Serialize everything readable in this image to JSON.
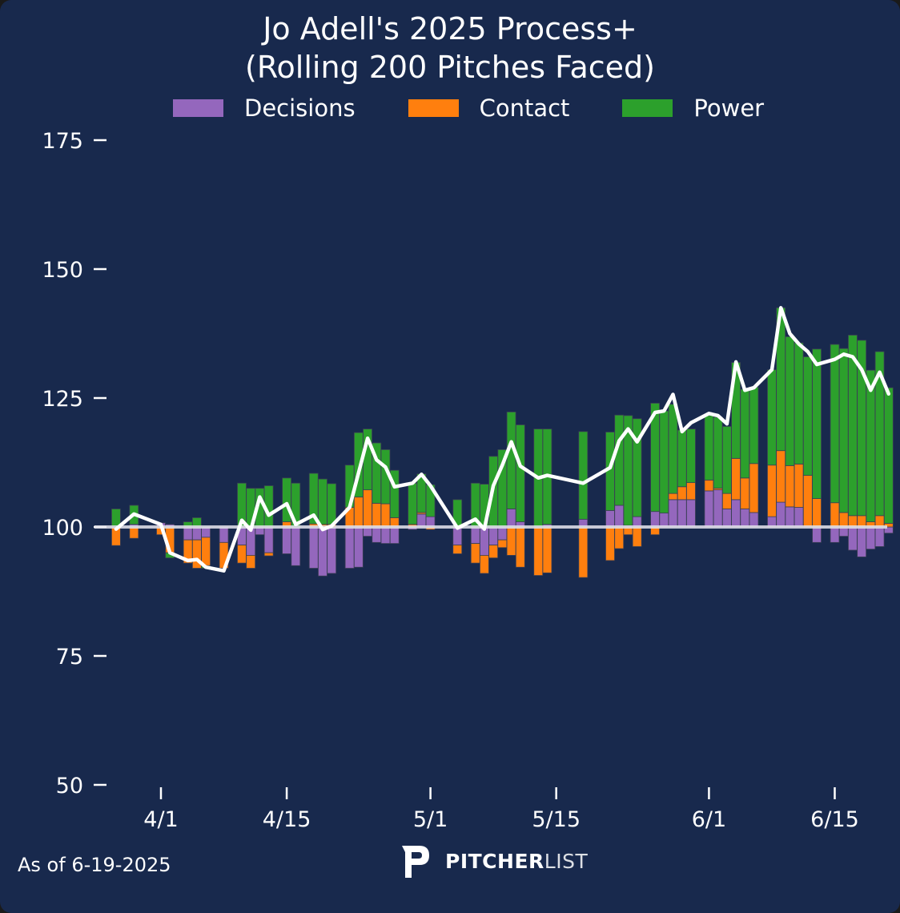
{
  "chart_data": {
    "type": "bar",
    "title_line1": "Jo Adell's 2025 Process+",
    "title_line2": "(Rolling 200 Pitches Faced)",
    "xlabel": "",
    "ylabel": "",
    "ylim": [
      50,
      180
    ],
    "baseline": 100,
    "yticks": [
      175,
      150,
      125,
      100,
      75,
      50
    ],
    "xticks": [
      {
        "label": "4/1",
        "day": 5
      },
      {
        "label": "4/15",
        "day": 19
      },
      {
        "label": "5/1",
        "day": 35
      },
      {
        "label": "5/15",
        "day": 49
      },
      {
        "label": "6/1",
        "day": 66
      },
      {
        "label": "6/15",
        "day": 80
      }
    ],
    "legend": {
      "position": "top-center",
      "entries": [
        {
          "name": "Decisions",
          "color": "#9467bd"
        },
        {
          "name": "Contact",
          "color": "#ff7f0e"
        },
        {
          "name": "Power",
          "color": "#2ca02c"
        }
      ]
    },
    "line": {
      "name": "Process+",
      "color": "#ffffff"
    },
    "series_note": "Each game: decisions/contact/power are deltas from 100; line is total Process+.",
    "games": [
      {
        "day": 0,
        "decisions": 0,
        "contact": -3.6,
        "power": 3.5,
        "total": 99.6
      },
      {
        "day": 2,
        "decisions": 0.5,
        "contact": -2.2,
        "power": 3.7,
        "total": 102.5
      },
      {
        "day": 5,
        "decisions": 0.8,
        "contact": -1.5,
        "power": 0,
        "total": 100.5
      },
      {
        "day": 6,
        "decisions": 0.5,
        "contact": -5.0,
        "power": -1.0,
        "total": 95
      },
      {
        "day": 8,
        "decisions": -2.5,
        "contact": -4.5,
        "power": 1.0,
        "total": 93.5
      },
      {
        "day": 9,
        "decisions": -2.5,
        "contact": -5.5,
        "power": 1.8,
        "total": 93.7
      },
      {
        "day": 10,
        "decisions": -2.0,
        "contact": -5.5,
        "power": -0.5,
        "total": 92.2
      },
      {
        "day": 12,
        "decisions": -3.0,
        "contact": -5.0,
        "power": 0,
        "total": 91.5
      },
      {
        "day": 14,
        "decisions": -3.5,
        "contact": -3.5,
        "power": 8.5,
        "total": 101.3
      },
      {
        "day": 15,
        "decisions": -5.5,
        "contact": -2.5,
        "power": 7.5,
        "total": 99.4
      },
      {
        "day": 16,
        "decisions": -1.5,
        "contact": 0,
        "power": 7.5,
        "total": 105.8
      },
      {
        "day": 17,
        "decisions": -5.0,
        "contact": -0.6,
        "power": 8.0,
        "total": 102.3
      },
      {
        "day": 19,
        "decisions": -5.2,
        "contact": 1.0,
        "power": 8.5,
        "total": 104.5
      },
      {
        "day": 20,
        "decisions": -7.5,
        "contact": 0,
        "power": 8.5,
        "total": 100.5
      },
      {
        "day": 22,
        "decisions": -8.0,
        "contact": 0.6,
        "power": 9.8,
        "total": 102.3
      },
      {
        "day": 23,
        "decisions": -9.5,
        "contact": 0.5,
        "power": 8.8,
        "total": 99.5
      },
      {
        "day": 24,
        "decisions": -9.0,
        "contact": 0.5,
        "power": 7.9,
        "total": 100.2
      },
      {
        "day": 26,
        "decisions": -8.0,
        "contact": 3.8,
        "power": 8.2,
        "total": 103.8
      },
      {
        "day": 27,
        "decisions": -7.8,
        "contact": 5.8,
        "power": 12.5,
        "total": 110.5
      },
      {
        "day": 28,
        "decisions": -1.8,
        "contact": 7.2,
        "power": 11.8,
        "total": 117.2
      },
      {
        "day": 29,
        "decisions": -3.0,
        "contact": 4.6,
        "power": 11.7,
        "total": 113.0
      },
      {
        "day": 30,
        "decisions": -3.2,
        "contact": 4.5,
        "power": 10.5,
        "total": 111.6
      },
      {
        "day": 31,
        "decisions": -3.2,
        "contact": 1.8,
        "power": 9.2,
        "total": 107.8
      },
      {
        "day": 33,
        "decisions": -0.5,
        "contact": 0.5,
        "power": 8.0,
        "total": 108.5
      },
      {
        "day": 34,
        "decisions": 2.5,
        "contact": 0.3,
        "power": 7.5,
        "total": 110.2
      },
      {
        "day": 35,
        "decisions": 2.0,
        "contact": -0.5,
        "power": 6.2,
        "total": 108.0
      },
      {
        "day": 38,
        "decisions": -3.5,
        "contact": -1.7,
        "power": 5.3,
        "total": 99.8
      },
      {
        "day": 40,
        "decisions": -3.2,
        "contact": -3.8,
        "power": 8.5,
        "total": 101.5
      },
      {
        "day": 41,
        "decisions": -5.5,
        "contact": -3.5,
        "power": 8.3,
        "total": 99.6
      },
      {
        "day": 42,
        "decisions": -3.5,
        "contact": -2.5,
        "power": 13.7,
        "total": 108.0
      },
      {
        "day": 43,
        "decisions": -2.5,
        "contact": -1.5,
        "power": 15.0,
        "total": 112.0
      },
      {
        "day": 44,
        "decisions": 3.5,
        "contact": -5.5,
        "power": 18.8,
        "total": 116.5
      },
      {
        "day": 45,
        "decisions": 1.0,
        "contact": -7.8,
        "power": 18.8,
        "total": 111.8
      },
      {
        "day": 47,
        "decisions": 0,
        "contact": -9.4,
        "power": 19.0,
        "total": 109.5
      },
      {
        "day": 48,
        "decisions": 0.5,
        "contact": -8.9,
        "power": 18.5,
        "total": 110.0
      },
      {
        "day": 52,
        "decisions": 1.5,
        "contact": -9.8,
        "power": 17.0,
        "total": 108.5
      },
      {
        "day": 55,
        "decisions": 3.2,
        "contact": -6.5,
        "power": 15.2,
        "total": 111.5
      },
      {
        "day": 56,
        "decisions": 4.2,
        "contact": -4.2,
        "power": 17.5,
        "total": 116.7
      },
      {
        "day": 57,
        "decisions": 0.3,
        "contact": -1.5,
        "power": 21.3,
        "total": 119.0
      },
      {
        "day": 58,
        "decisions": 2.0,
        "contact": -3.8,
        "power": 19.0,
        "total": 116.5
      },
      {
        "day": 60,
        "decisions": 3.0,
        "contact": -1.5,
        "power": 21.0,
        "total": 122.2
      },
      {
        "day": 61,
        "decisions": 2.7,
        "contact": 0,
        "power": 19.8,
        "total": 122.5
      },
      {
        "day": 62,
        "decisions": 5.3,
        "contact": 1.2,
        "power": 17.3,
        "total": 125.7
      },
      {
        "day": 63,
        "decisions": 5.3,
        "contact": 2.5,
        "power": 11.0,
        "total": 118.5
      },
      {
        "day": 64,
        "decisions": 5.3,
        "contact": 3.3,
        "power": 10.4,
        "total": 120.2
      },
      {
        "day": 66,
        "decisions": 7.0,
        "contact": 2.1,
        "power": 12.5,
        "total": 122.0
      },
      {
        "day": 67,
        "decisions": 7.2,
        "contact": 0.3,
        "power": 13.8,
        "total": 121.6
      },
      {
        "day": 68,
        "decisions": 3.5,
        "contact": 3.0,
        "power": 13.0,
        "total": 120.0
      },
      {
        "day": 69,
        "decisions": 5.3,
        "contact": 8.0,
        "power": 18.6,
        "total": 132.0
      },
      {
        "day": 70,
        "decisions": 3.5,
        "contact": 6.0,
        "power": 17.2,
        "total": 126.5
      },
      {
        "day": 71,
        "decisions": 2.8,
        "contact": 9.5,
        "power": 14.8,
        "total": 127.0
      },
      {
        "day": 73,
        "decisions": 2.0,
        "contact": 10.0,
        "power": 18.5,
        "total": 130.5
      },
      {
        "day": 74,
        "decisions": 4.8,
        "contact": 10.0,
        "power": 27.7,
        "total": 142.5
      },
      {
        "day": 75,
        "decisions": 3.9,
        "contact": 8.0,
        "power": 25.0,
        "total": 137.5
      },
      {
        "day": 76,
        "decisions": 3.8,
        "contact": 8.4,
        "power": 23.5,
        "total": 135.5
      },
      {
        "day": 77,
        "decisions": 0,
        "contact": 10.0,
        "power": 23.0,
        "total": 134.0
      },
      {
        "day": 78,
        "decisions": -3.0,
        "contact": 5.5,
        "power": 29.0,
        "total": 131.5
      },
      {
        "day": 80,
        "decisions": -3.0,
        "contact": 4.7,
        "power": 30.7,
        "total": 132.5
      },
      {
        "day": 81,
        "decisions": -1.8,
        "contact": 2.8,
        "power": 31.8,
        "total": 133.5
      },
      {
        "day": 82,
        "decisions": -4.5,
        "contact": 2.2,
        "power": 35.0,
        "total": 133.0
      },
      {
        "day": 83,
        "decisions": -5.8,
        "contact": 2.2,
        "power": 34.0,
        "total": 130.5
      },
      {
        "day": 84,
        "decisions": -4.3,
        "contact": 1.0,
        "power": 29.4,
        "total": 126.5
      },
      {
        "day": 85,
        "decisions": -3.8,
        "contact": 2.2,
        "power": 31.8,
        "total": 130.0
      },
      {
        "day": 86,
        "decisions": -1.2,
        "contact": 0.7,
        "power": 26.3,
        "total": 125.8
      }
    ]
  },
  "footer": {
    "as_of": "As of 6-19-2025",
    "brand_bold": "PITCHER",
    "brand_light": "LIST"
  }
}
